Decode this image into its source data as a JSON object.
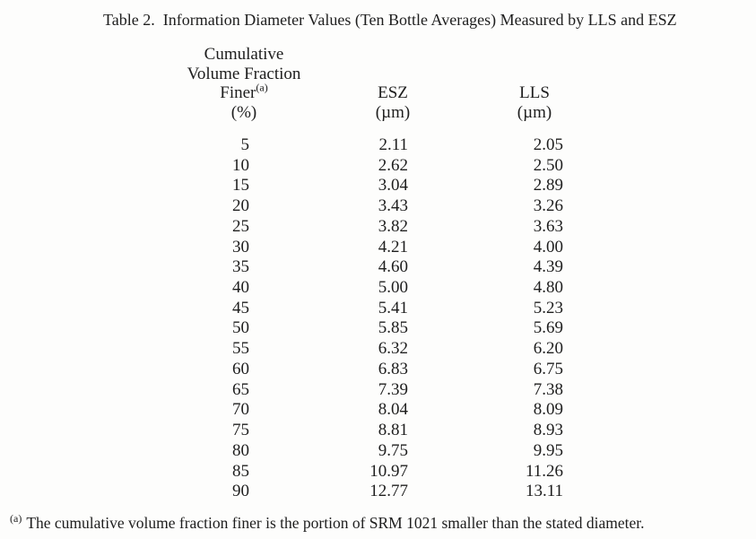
{
  "title": "Table 2.  Information Diameter Values (Ten Bottle Averages) Measured by LLS and ESZ",
  "table": {
    "col1_header": {
      "line1": "Cumulative",
      "line2": "Volume Fraction",
      "line3": "Finer",
      "line3_sup": "(a)",
      "unit": "(%)"
    },
    "col2_header": {
      "name": "ESZ",
      "unit": "(µm)"
    },
    "col3_header": {
      "name": "LLS",
      "unit": "(µm)"
    },
    "rows": [
      {
        "pct": "5",
        "esz": "2.11",
        "lls": "2.05"
      },
      {
        "pct": "10",
        "esz": "2.62",
        "lls": "2.50"
      },
      {
        "pct": "15",
        "esz": "3.04",
        "lls": "2.89"
      },
      {
        "pct": "20",
        "esz": "3.43",
        "lls": "3.26"
      },
      {
        "pct": "25",
        "esz": "3.82",
        "lls": "3.63"
      },
      {
        "pct": "30",
        "esz": "4.21",
        "lls": "4.00"
      },
      {
        "pct": "35",
        "esz": "4.60",
        "lls": "4.39"
      },
      {
        "pct": "40",
        "esz": "5.00",
        "lls": "4.80"
      },
      {
        "pct": "45",
        "esz": "5.41",
        "lls": "5.23"
      },
      {
        "pct": "50",
        "esz": "5.85",
        "lls": "5.69"
      },
      {
        "pct": "55",
        "esz": "6.32",
        "lls": "6.20"
      },
      {
        "pct": "60",
        "esz": "6.83",
        "lls": "6.75"
      },
      {
        "pct": "65",
        "esz": "7.39",
        "lls": "7.38"
      },
      {
        "pct": "70",
        "esz": "8.04",
        "lls": "8.09"
      },
      {
        "pct": "75",
        "esz": "8.81",
        "lls": "8.93"
      },
      {
        "pct": "80",
        "esz": "9.75",
        "lls": "9.95"
      },
      {
        "pct": "85",
        "esz": "10.97",
        "lls": "11.26"
      },
      {
        "pct": "90",
        "esz": "12.77",
        "lls": "13.11"
      }
    ]
  },
  "footnote": {
    "marker": "(a)",
    "text": "The cumulative volume fraction finer is the portion of SRM 1021 smaller than the stated diameter."
  }
}
